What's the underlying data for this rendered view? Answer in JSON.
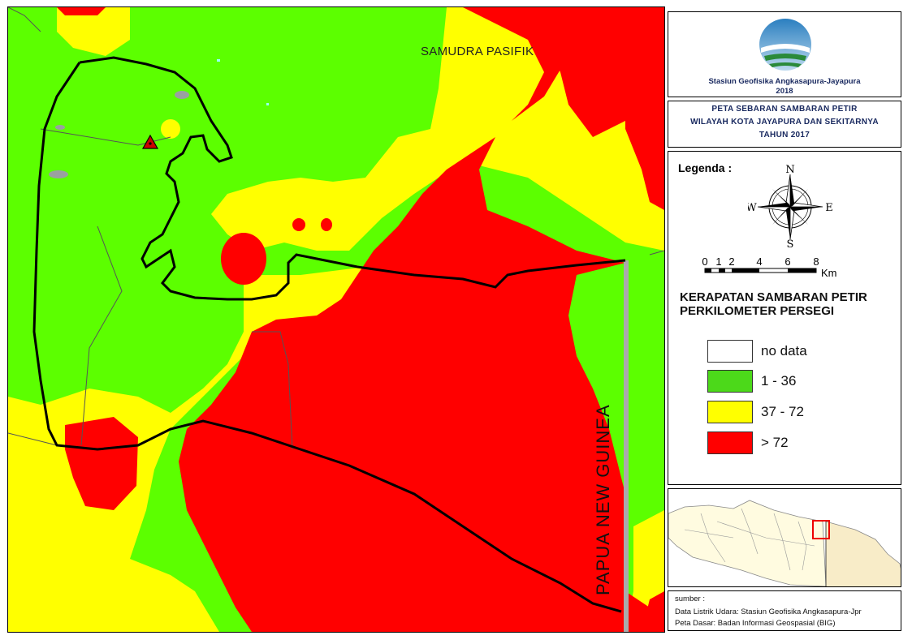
{
  "map": {
    "ocean_label": "SAMUDRA PASIFIK",
    "country_label": "PAPUA NEW GUINEA",
    "zone_colors": {
      "no_data": "#ffffff",
      "low": "#5cff00",
      "mid": "#ffff00",
      "high": "#ff0000"
    }
  },
  "logo": {
    "org_name": "Stasiun Geofisika Angkasapura-Jayapura",
    "year": "2018"
  },
  "title": {
    "line1": "PETA SEBARAN SAMBARAN PETIR",
    "line2": "WILAYAH KOTA JAYAPURA DAN SEKITARNYA",
    "line3": "TAHUN  2017"
  },
  "legend": {
    "heading": "Legenda :",
    "compass": {
      "n": "N",
      "s": "S",
      "e": "E",
      "w": "W"
    },
    "scale_ticks": [
      "0",
      "1",
      "2",
      "4",
      "6",
      "8"
    ],
    "scale_unit": "Km",
    "density_title_1": "KERAPATAN SAMBARAN PETIR",
    "density_title_2": "PERKILOMETER PERSEGI",
    "classes": [
      {
        "label": "no data",
        "color": "#ffffff"
      },
      {
        "label": "1 - 36",
        "color": "#4cd91a"
      },
      {
        "label": "37 - 72",
        "color": "#ffff00"
      },
      {
        "label": ">  72",
        "color": "#ff0000"
      }
    ]
  },
  "source": {
    "heading": "sumber :",
    "line1": "Data Listrik Udara: Stasiun Geofisika Angkasapura-Jpr",
    "line2": "Peta Dasar: Badan Informasi Geospasial (BIG)"
  }
}
